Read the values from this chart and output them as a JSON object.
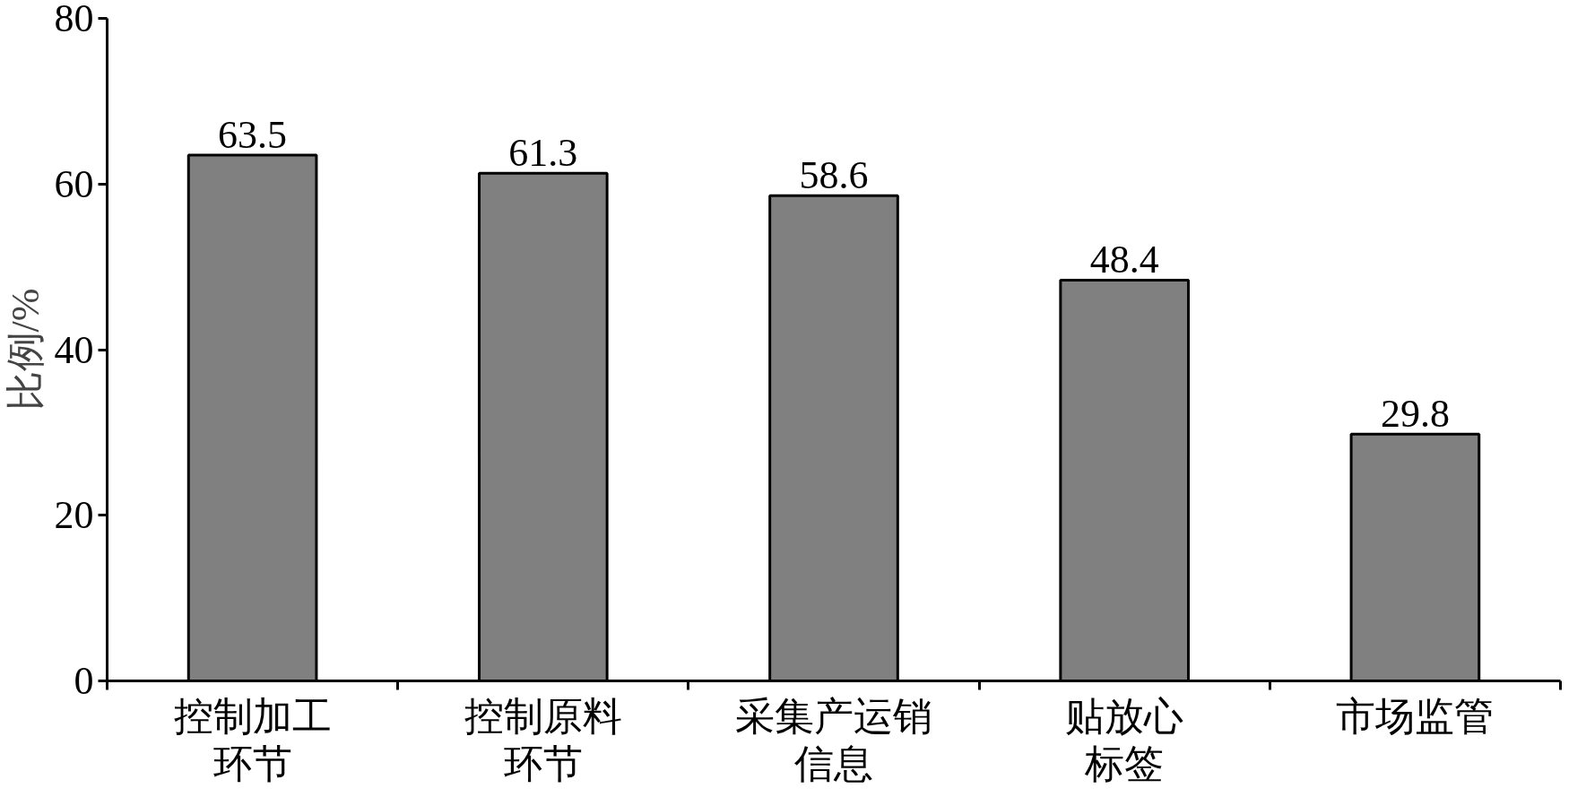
{
  "chart_data": {
    "type": "bar",
    "ylabel": "比例/%",
    "categories": [
      "控制加工环节",
      "控制原料环节",
      "采集产运销信息",
      "贴放心标签",
      "市场监管"
    ],
    "values": [
      63.5,
      61.3,
      58.6,
      48.4,
      29.8
    ],
    "color": "#808080",
    "ylim": [
      0,
      80
    ],
    "yticks": [
      0,
      20,
      40,
      60,
      80
    ],
    "data_labels": true,
    "grid": false
  }
}
